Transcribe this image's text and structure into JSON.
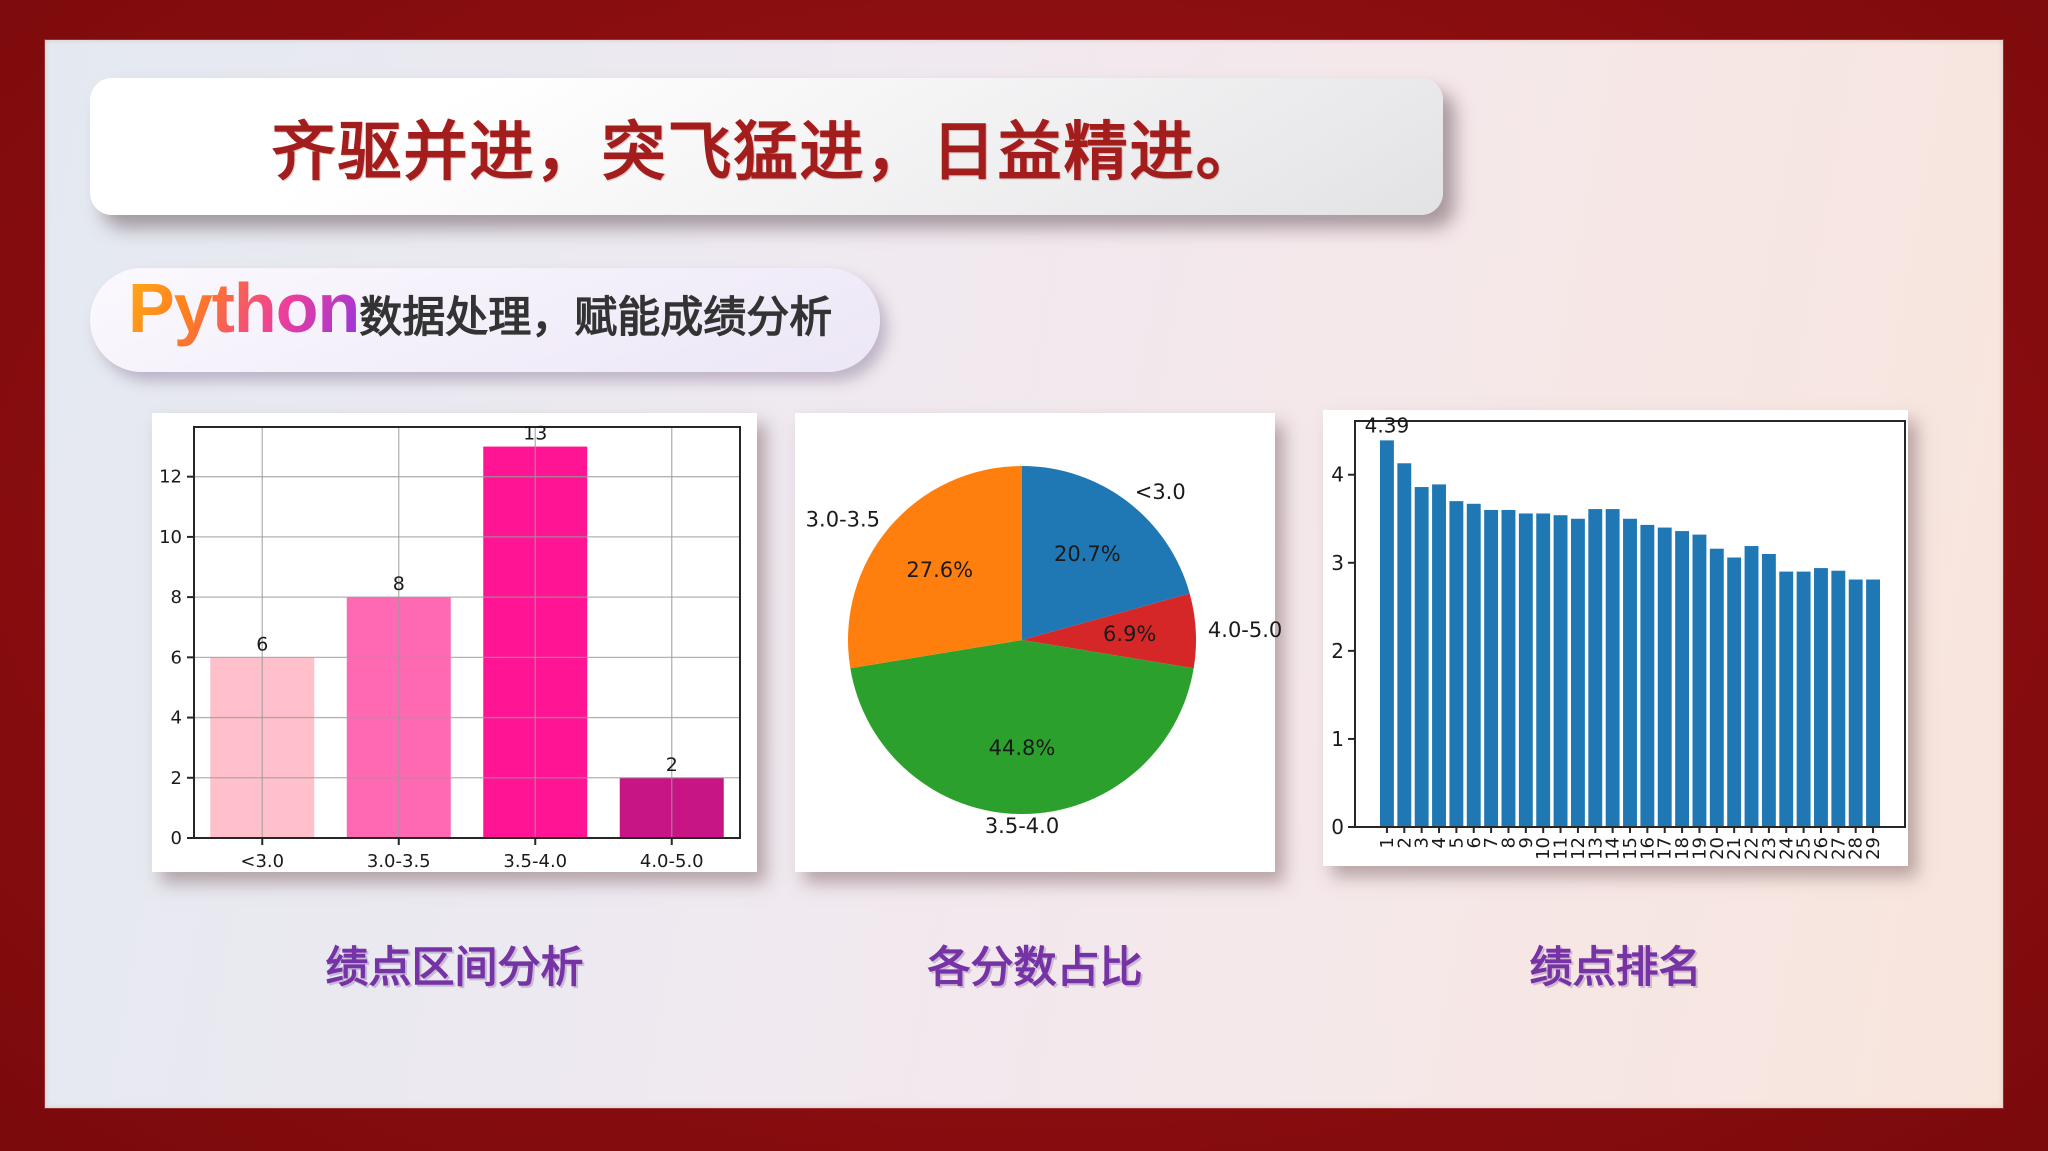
{
  "slide": {
    "title": "齐驱并进，突飞猛进，日益精进。",
    "badge": {
      "brand": "Python",
      "caption": "数据处理，赋能成绩分析"
    },
    "panel_captions": [
      "绩点区间分析",
      "各分数占比",
      "绩点排名"
    ]
  },
  "colors": {
    "frame_red": "#8c0e10",
    "title_red": "#a31d1d",
    "caption_purple": "#7633a6",
    "rank_bar_blue": "#1f77b4"
  },
  "chart_data": [
    {
      "type": "bar",
      "title": "",
      "categories": [
        "<3.0",
        "3.0-3.5",
        "3.5-4.0",
        "4.0-5.0"
      ],
      "values": [
        6,
        8,
        13,
        2
      ],
      "value_labels": [
        "6",
        "8",
        "13",
        "2"
      ],
      "bar_colors": [
        "#ffc0cb",
        "#ff69b4",
        "#ff1493",
        "#c71585"
      ],
      "yticks": [
        0,
        2,
        4,
        6,
        8,
        10,
        12
      ],
      "ylim": [
        0,
        13.65
      ],
      "grid": true,
      "legend": "none"
    },
    {
      "type": "pie",
      "title": "",
      "start_angle_deg_from_top": 0,
      "clockwise": true,
      "slices": [
        {
          "label": "<3.0",
          "pct": 20.7,
          "pct_label": "20.7%",
          "color": "#1f77b4"
        },
        {
          "label": "4.0-5.0",
          "pct": 6.9,
          "pct_label": "6.9%",
          "color": "#d62728"
        },
        {
          "label": "3.5-4.0",
          "pct": 44.8,
          "pct_label": "44.8%",
          "color": "#2ca02c"
        },
        {
          "label": "3.0-3.5",
          "pct": 27.6,
          "pct_label": "27.6%",
          "color": "#ff7f0e"
        }
      ]
    },
    {
      "type": "bar",
      "title": "",
      "categories": [
        "1",
        "2",
        "3",
        "4",
        "5",
        "6",
        "7",
        "8",
        "9",
        "10",
        "11",
        "12",
        "13",
        "14",
        "15",
        "16",
        "17",
        "18",
        "19",
        "20",
        "21",
        "22",
        "23",
        "24",
        "25",
        "26",
        "27",
        "28",
        "29"
      ],
      "values": [
        4.39,
        4.13,
        3.86,
        3.89,
        3.7,
        3.67,
        3.6,
        3.6,
        3.56,
        3.56,
        3.54,
        3.5,
        3.61,
        3.61,
        3.5,
        3.43,
        3.4,
        3.36,
        3.32,
        3.16,
        3.06,
        3.19,
        3.1,
        2.9,
        2.9,
        2.94,
        2.91,
        2.81,
        2.81
      ],
      "first_bar_label": "4.39",
      "bar_color": "#1f77b4",
      "yticks": [
        0,
        1,
        2,
        3,
        4
      ],
      "ylim": [
        0,
        4.61
      ],
      "xtick_rotation_deg": 90,
      "grid": false,
      "legend": "none"
    }
  ]
}
